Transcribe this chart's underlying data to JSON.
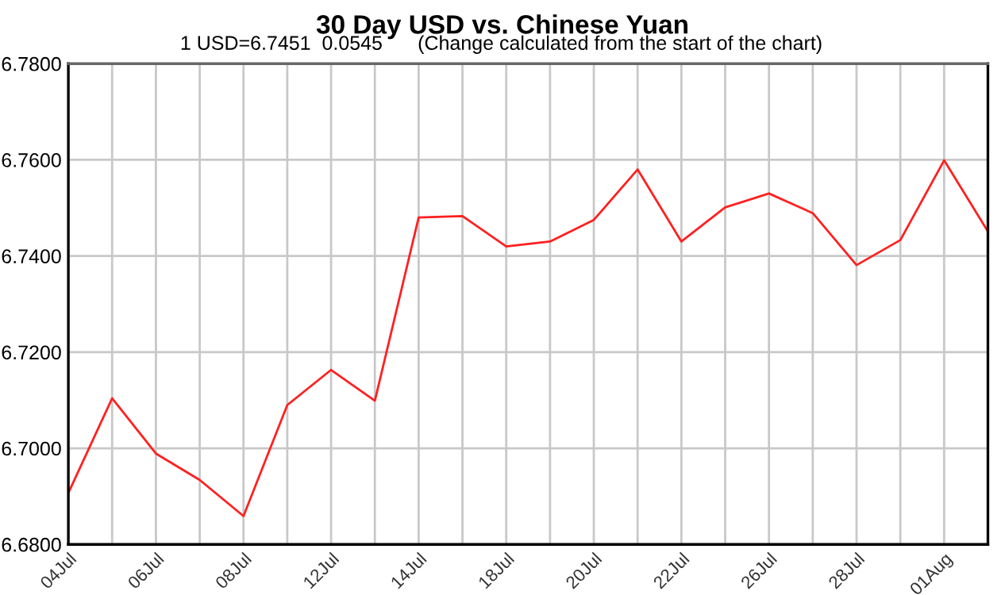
{
  "chart_data": {
    "type": "line",
    "title": "30 Day USD vs. Chinese Yuan",
    "subtitle": "1 USD=6.7451  0.0545",
    "annotations": [
      "(Change calculated from the start of the chart)"
    ],
    "categories": [
      "04Jul",
      null,
      "06Jul",
      null,
      "08Jul",
      null,
      "12Jul",
      null,
      "14Jul",
      null,
      "18Jul",
      null,
      "20Jul",
      null,
      "22Jul",
      null,
      "26Jul",
      null,
      "28Jul",
      null,
      "01Aug",
      null
    ],
    "series": [
      {
        "color": "#ff2020",
        "values": [
          6.6907,
          6.7104,
          6.6989,
          6.6934,
          6.6859,
          6.709,
          6.7163,
          6.7099,
          6.748,
          6.7483,
          6.742,
          6.743,
          6.7475,
          6.758,
          6.743,
          6.7501,
          6.753,
          6.7489,
          6.7381,
          6.7433,
          6.7599,
          6.7451
        ]
      }
    ],
    "ylim": [
      6.68,
      6.78
    ],
    "yticks": [
      {
        "value": 6.68,
        "label": "6.6800"
      },
      {
        "value": 6.7,
        "label": "6.7000"
      },
      {
        "value": 6.72,
        "label": "6.7200"
      },
      {
        "value": 6.74,
        "label": "6.7400"
      },
      {
        "value": 6.76,
        "label": "6.7600"
      },
      {
        "value": 6.78,
        "label": "6.7800"
      }
    ],
    "grid": true,
    "legend": false,
    "marker": "none",
    "line_style": "solid"
  }
}
